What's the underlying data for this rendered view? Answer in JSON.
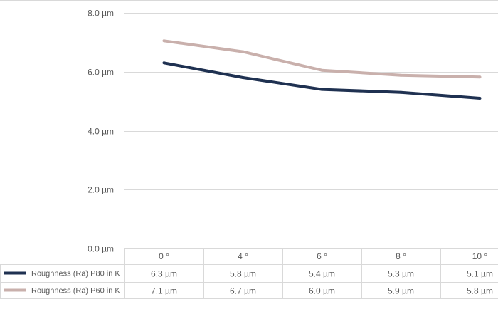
{
  "chart_data": {
    "type": "line",
    "title": "",
    "xlabel": "",
    "ylabel": "",
    "categories": [
      "0 °",
      "4 °",
      "6 °",
      "8 °",
      "10 °"
    ],
    "y_ticks": [
      "0.0 µm",
      "2.0 µm",
      "4.0 µm",
      "6.0 µm",
      "8.0 µm"
    ],
    "ylim": [
      0,
      8
    ],
    "grid": true,
    "legend_placement": "data-table",
    "series": [
      {
        "name": "Roughness (Ra) P80 in K",
        "color": "#1f3151",
        "values": [
          6.3,
          5.8,
          5.4,
          5.3,
          5.1
        ],
        "labels": [
          "6.3 µm",
          "5.8 µm",
          "5.4 µm",
          "5.3 µm",
          "5.1 µm"
        ]
      },
      {
        "name": "Roughness (Ra) P60 in K",
        "color": "#c9b0ac",
        "values": [
          7.05,
          6.68,
          6.05,
          5.88,
          5.82
        ],
        "labels": [
          "7.1 µm",
          "6.7 µm",
          "6.0 µm",
          "5.9 µm",
          "5.8 µm"
        ]
      }
    ]
  }
}
